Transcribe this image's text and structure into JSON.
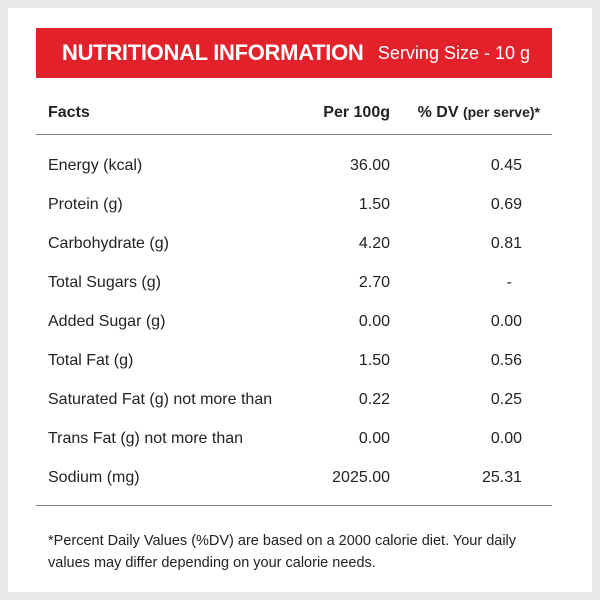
{
  "banner": {
    "title": "NUTRITIONAL INFORMATION",
    "serving": "Serving Size - 10 g",
    "color": "#e3212b"
  },
  "columns": {
    "facts": "Facts",
    "per100": "Per 100g",
    "dv_main": "% DV",
    "dv_sub": "(per serve)*"
  },
  "rows": [
    {
      "name": "Energy (kcal)",
      "per100": "36.00",
      "dv": "0.45"
    },
    {
      "name": "Protein (g)",
      "per100": "1.50",
      "dv": "0.69"
    },
    {
      "name": "Carbohydrate (g)",
      "per100": "4.20",
      "dv": "0.81"
    },
    {
      "name": "Total Sugars (g)",
      "per100": "2.70",
      "dv": "-"
    },
    {
      "name": "Added Sugar (g)",
      "per100": "0.00",
      "dv": "0.00"
    },
    {
      "name": "Total Fat (g)",
      "per100": "1.50",
      "dv": "0.56"
    },
    {
      "name": "Saturated Fat (g) not more than",
      "per100": "0.22",
      "dv": "0.25"
    },
    {
      "name": "Trans Fat (g) not more than",
      "per100": "0.00",
      "dv": "0.00"
    },
    {
      "name": "Sodium (mg)",
      "per100": "2025.00",
      "dv": "25.31"
    }
  ],
  "footnote": "*Percent Daily Values (%DV) are based on a 2000 calorie diet. Your daily values may differ depending on your calorie needs."
}
